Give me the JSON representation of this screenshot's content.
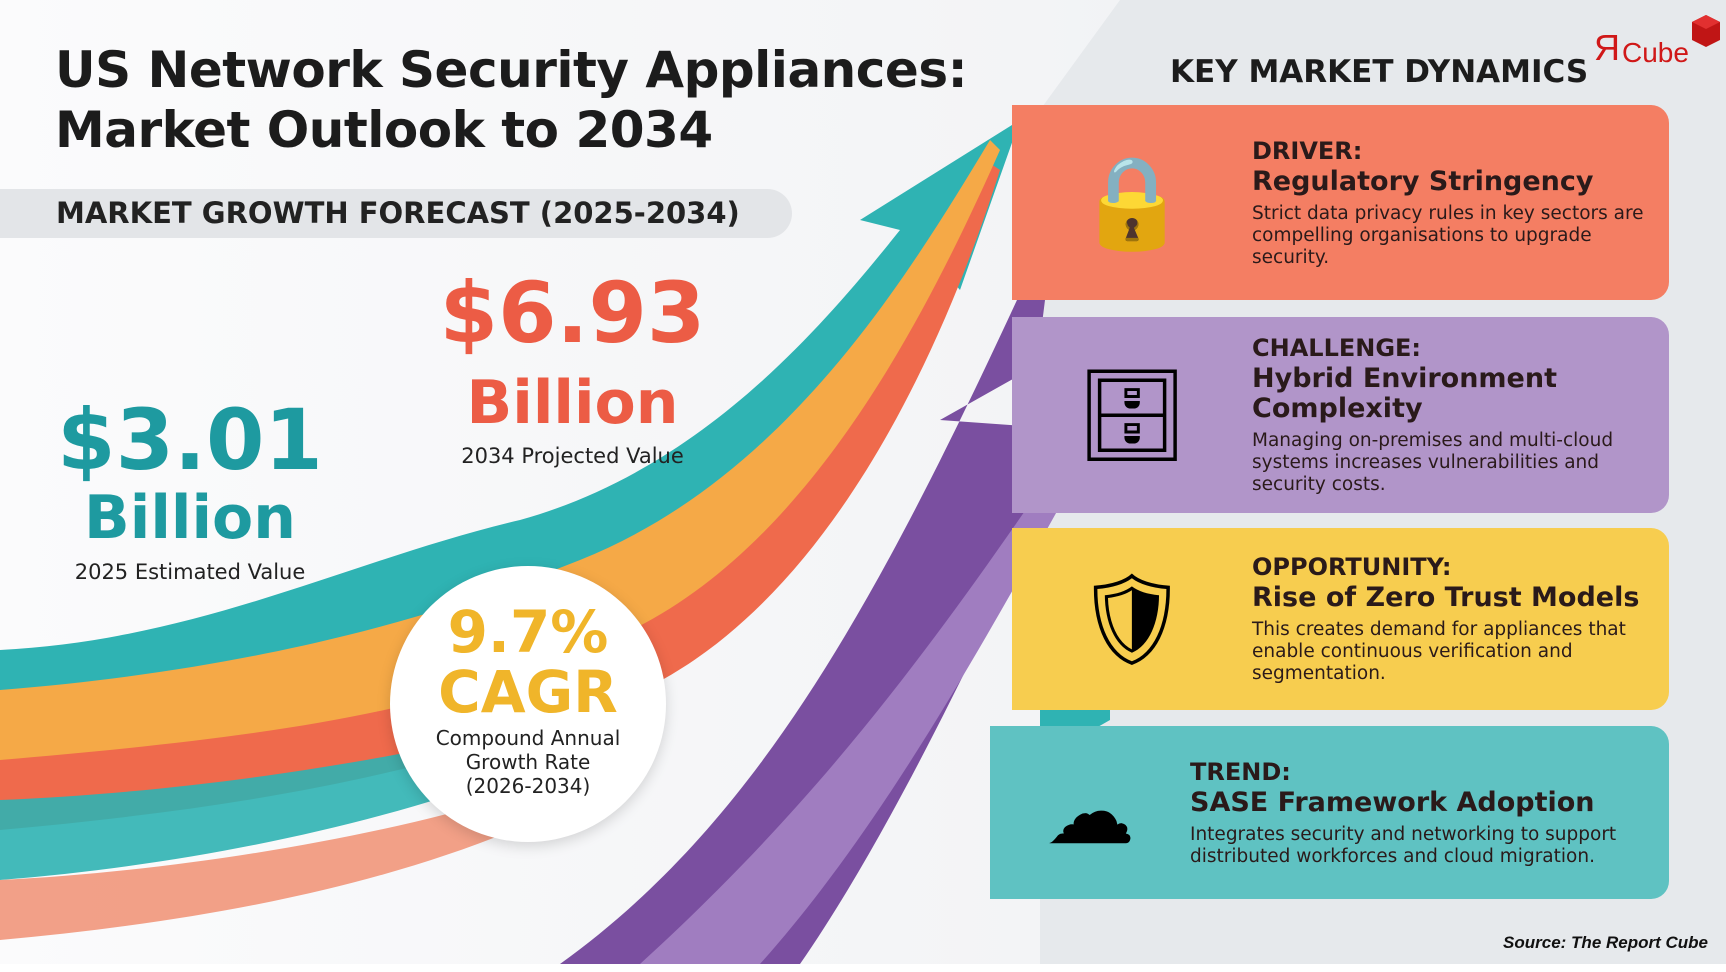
{
  "title": {
    "line1": "US Network Security Appliances:",
    "line2": "Market Outlook to 2034"
  },
  "subtitle": "MARKET GROWTH FORECAST (2025-2034)",
  "projected": {
    "value": "$6.93",
    "unit": "Billion",
    "label": "2034 Projected Value"
  },
  "estimated": {
    "value": "$3.01",
    "unit": "Billion",
    "label": "2025 Estimated Value"
  },
  "cagr": {
    "value": "9.7%",
    "label": "CAGR",
    "desc1": "Compound Annual",
    "desc2": "Growth Rate",
    "period": "(2026-2034)"
  },
  "dynamics": {
    "heading": "KEY MARKET DYNAMICS",
    "cards": [
      {
        "tag": "DRIVER:",
        "title": "Regulatory Stringency",
        "desc": "Strict data privacy rules in key sectors are compelling organisations to upgrade security.",
        "color": "#f47e63",
        "icon": "padlock-icon"
      },
      {
        "tag": "CHALLENGE:",
        "title": "Hybrid Environment Complexity",
        "desc": "Managing on-premises and multi-cloud systems increases vulnerabilities and security costs.",
        "color": "#b195c9",
        "icon": "server-cloud-icon"
      },
      {
        "tag": "OPPORTUNITY:",
        "title": "Rise of Zero Trust Models",
        "desc": "This creates demand for appliances that enable continuous verification and segmentation.",
        "color": "#f7cd4f",
        "icon": "shield-check-icon"
      },
      {
        "tag": "TREND:",
        "title": "SASE Framework Adoption",
        "desc": "Integrates security and networking to support distributed workforces and cloud migration.",
        "color": "#5fc2c2",
        "icon": "cloud-network-icon"
      }
    ]
  },
  "logo": "ЯCube",
  "source": "Source: The Report Cube"
}
